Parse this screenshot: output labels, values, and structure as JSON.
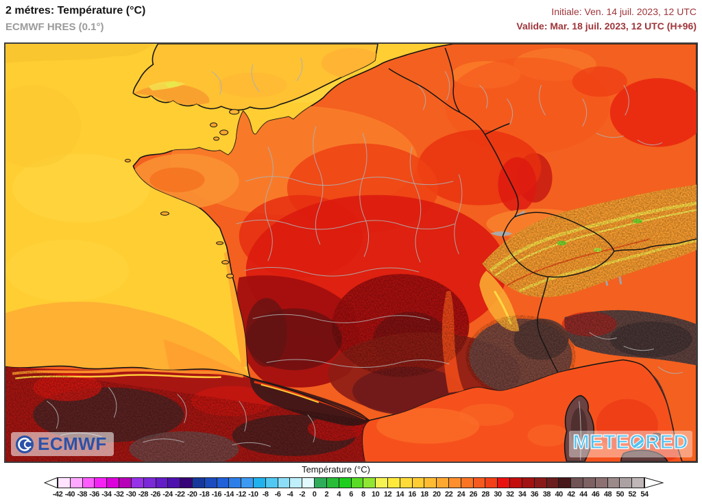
{
  "header": {
    "title": "2 métres: Température (°C)",
    "model": "ECMWF HRES (0.1°)",
    "run_init": "Initiale: Ven. 14 juil. 2023, 12 UTC",
    "run_valid": "Valide: Mar. 18 juil. 2023, 12 UTC (H+96)",
    "date_color": "#9E3439"
  },
  "map": {
    "attribution": {
      "ecmwf": "ECMWF",
      "meteored": {
        "part1": "METE",
        "o": "O",
        "part2": "RED"
      }
    },
    "colors": {
      "sea_atlantic": "#FFCE33",
      "sea_biscay": "#FFB133",
      "sea_mediterranean": "#F6511C",
      "coastline": "#151515",
      "country_border": "#151515",
      "admin_border": "#B0B0B0"
    }
  },
  "legend": {
    "title": "Température (°C)",
    "unit": "°C",
    "min": -42,
    "max": 54,
    "step": 2,
    "tick_labels": [
      "-42",
      "-40",
      "-38",
      "-36",
      "-34",
      "-32",
      "-30",
      "-28",
      "-26",
      "-24",
      "-22",
      "-20",
      "-18",
      "-16",
      "-14",
      "-12",
      "-10",
      "-8",
      "-6",
      "-4",
      "-2",
      "0",
      "2",
      "4",
      "6",
      "8",
      "10",
      "12",
      "14",
      "16",
      "18",
      "20",
      "22",
      "24",
      "26",
      "28",
      "30",
      "32",
      "34",
      "36",
      "38",
      "40",
      "42",
      "44",
      "46",
      "48",
      "50",
      "52",
      "54"
    ],
    "segment_colors": [
      "#FFE3FF",
      "#FFA8FF",
      "#FF5CFF",
      "#F522F5",
      "#DC00DC",
      "#B800B8",
      "#9632E8",
      "#7B28D8",
      "#641CC8",
      "#4F10B0",
      "#360478",
      "#16389C",
      "#1A4CBE",
      "#2060D8",
      "#2E7EE8",
      "#3C9AF2",
      "#20B2EC",
      "#50C8F2",
      "#8CDEF8",
      "#BEEFFA",
      "#E2FAFD",
      "#2EAC5A",
      "#28BC38",
      "#1ECE1E",
      "#5ADC26",
      "#90E632",
      "#F5F253",
      "#FFEA3C",
      "#FFDB3A",
      "#FFCC33",
      "#FFBC33",
      "#FFA830",
      "#FF8F2C",
      "#FA7424",
      "#F65A1E",
      "#F24018",
      "#E81210",
      "#C40E0E",
      "#A31212",
      "#8A1A1A",
      "#6B1E1E",
      "#471719",
      "#705355",
      "#7E6163",
      "#8C7072",
      "#9C8A8B",
      "#ACA1A2",
      "#BEB6B7"
    ]
  }
}
